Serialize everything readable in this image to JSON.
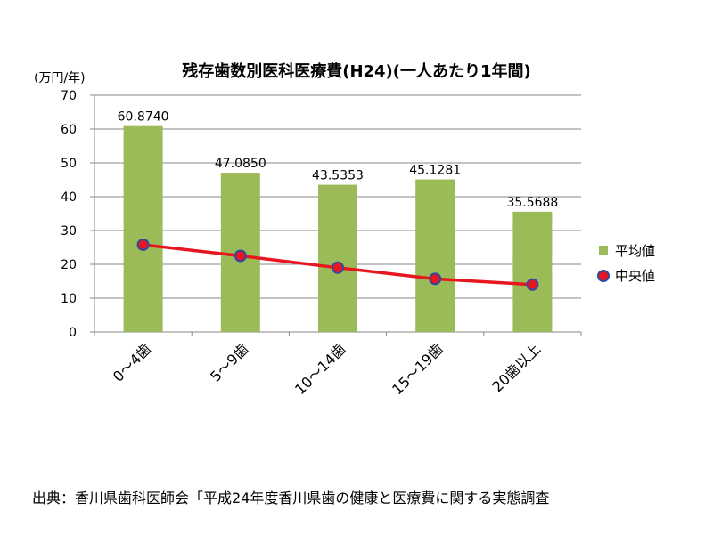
{
  "chart_data": {
    "type": "bar",
    "title": "残存歯数別医科医療費(H24)(一人あたり1年間)",
    "ylabel": "(万円/年)",
    "xlabel": "",
    "ylim": [
      0,
      70
    ],
    "yticks": [
      "0",
      "10",
      "20",
      "30",
      "40",
      "50",
      "60",
      "70"
    ],
    "grid": true,
    "legend_position": "right",
    "categories": [
      "0～4歯",
      "5～9歯",
      "10～14歯",
      "15～19歯",
      "20歯以上"
    ],
    "series": [
      {
        "name": "平均値",
        "type": "bar",
        "color": "#9bbb59",
        "values": [
          60.874,
          47.085,
          43.5353,
          45.1281,
          35.5688
        ],
        "labels": [
          "60.8740",
          "47.0850",
          "43.5353",
          "45.1281",
          "35.5688"
        ]
      },
      {
        "name": "中央値",
        "type": "line",
        "color": "#e8171f",
        "marker_edge_color": "#2e4aa0",
        "values": [
          25.8,
          22.5,
          19.0,
          15.7,
          14.0
        ]
      }
    ]
  },
  "source_text": "出典：香川県歯科医師会「平成24年度香川県歯の健康と医療費に関する実態調査"
}
